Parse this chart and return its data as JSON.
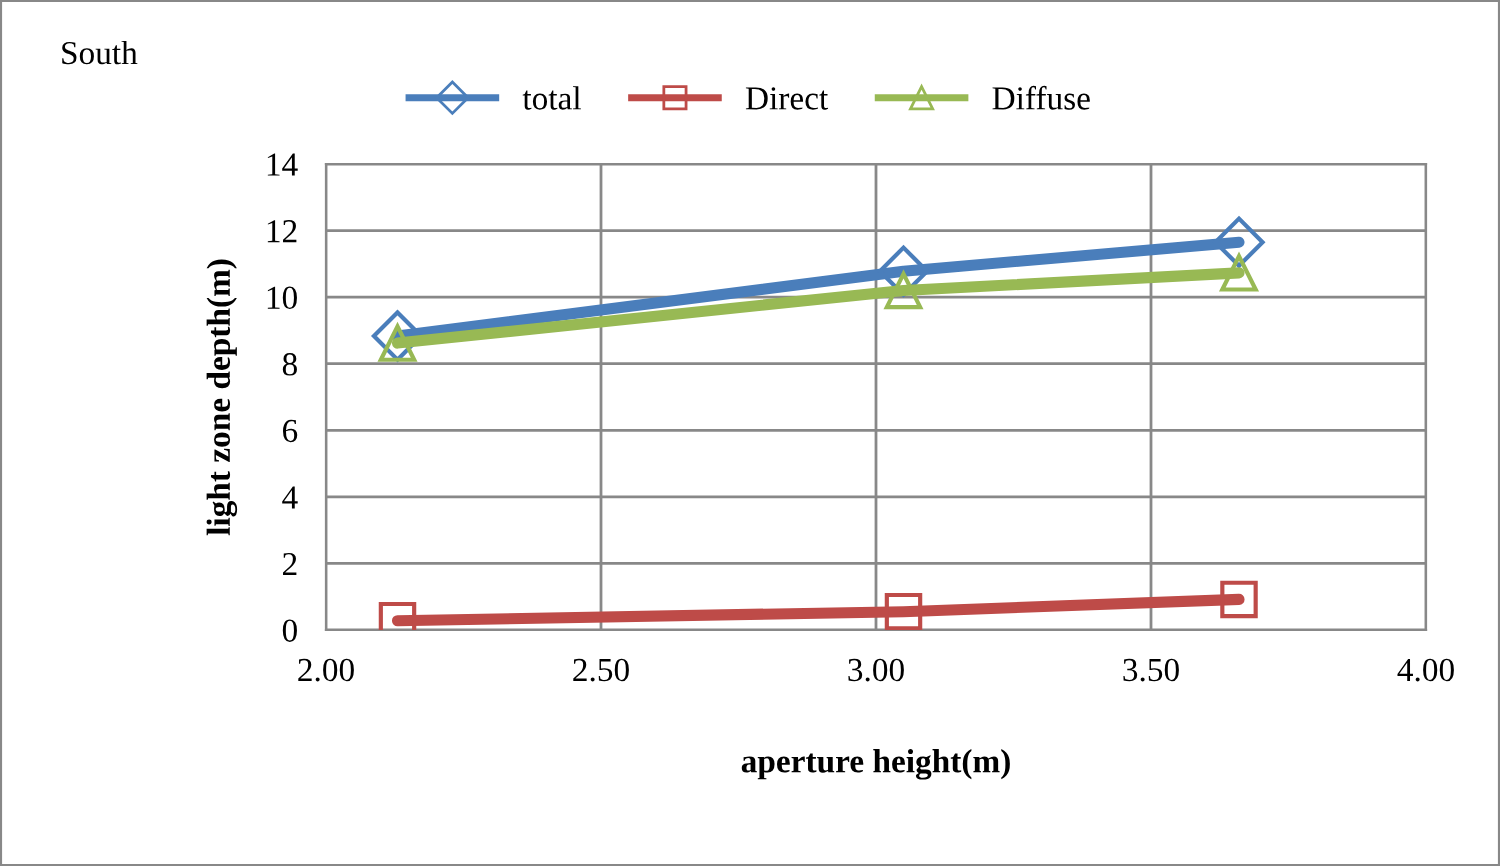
{
  "chart_data": {
    "type": "line",
    "title": "South",
    "xlabel": "aperture height(m)",
    "ylabel": "light zone depth(m)",
    "x": [
      2.13,
      3.05,
      3.66
    ],
    "series": [
      {
        "name": "total",
        "color": "#4a7ebb",
        "marker": "diamond",
        "values": [
          8.83,
          10.78,
          11.65
        ]
      },
      {
        "name": "Direct",
        "color": "#be4b48",
        "marker": "square",
        "values": [
          0.28,
          0.55,
          0.92
        ]
      },
      {
        "name": "Diffuse",
        "color": "#98b954",
        "marker": "triangle",
        "values": [
          8.62,
          10.2,
          10.73
        ]
      }
    ],
    "xlim": [
      2.0,
      4.0
    ],
    "xticks": [
      {
        "value": 2.0,
        "label": "2.00"
      },
      {
        "value": 2.5,
        "label": "2.50"
      },
      {
        "value": 3.0,
        "label": "3.00"
      },
      {
        "value": 3.5,
        "label": "3.50"
      },
      {
        "value": 4.0,
        "label": "4.00"
      }
    ],
    "ylim": [
      0,
      14
    ],
    "yticks": [
      0,
      2,
      4,
      6,
      8,
      10,
      12,
      14
    ],
    "grid": true,
    "legend": "top",
    "line_style": "solid"
  }
}
